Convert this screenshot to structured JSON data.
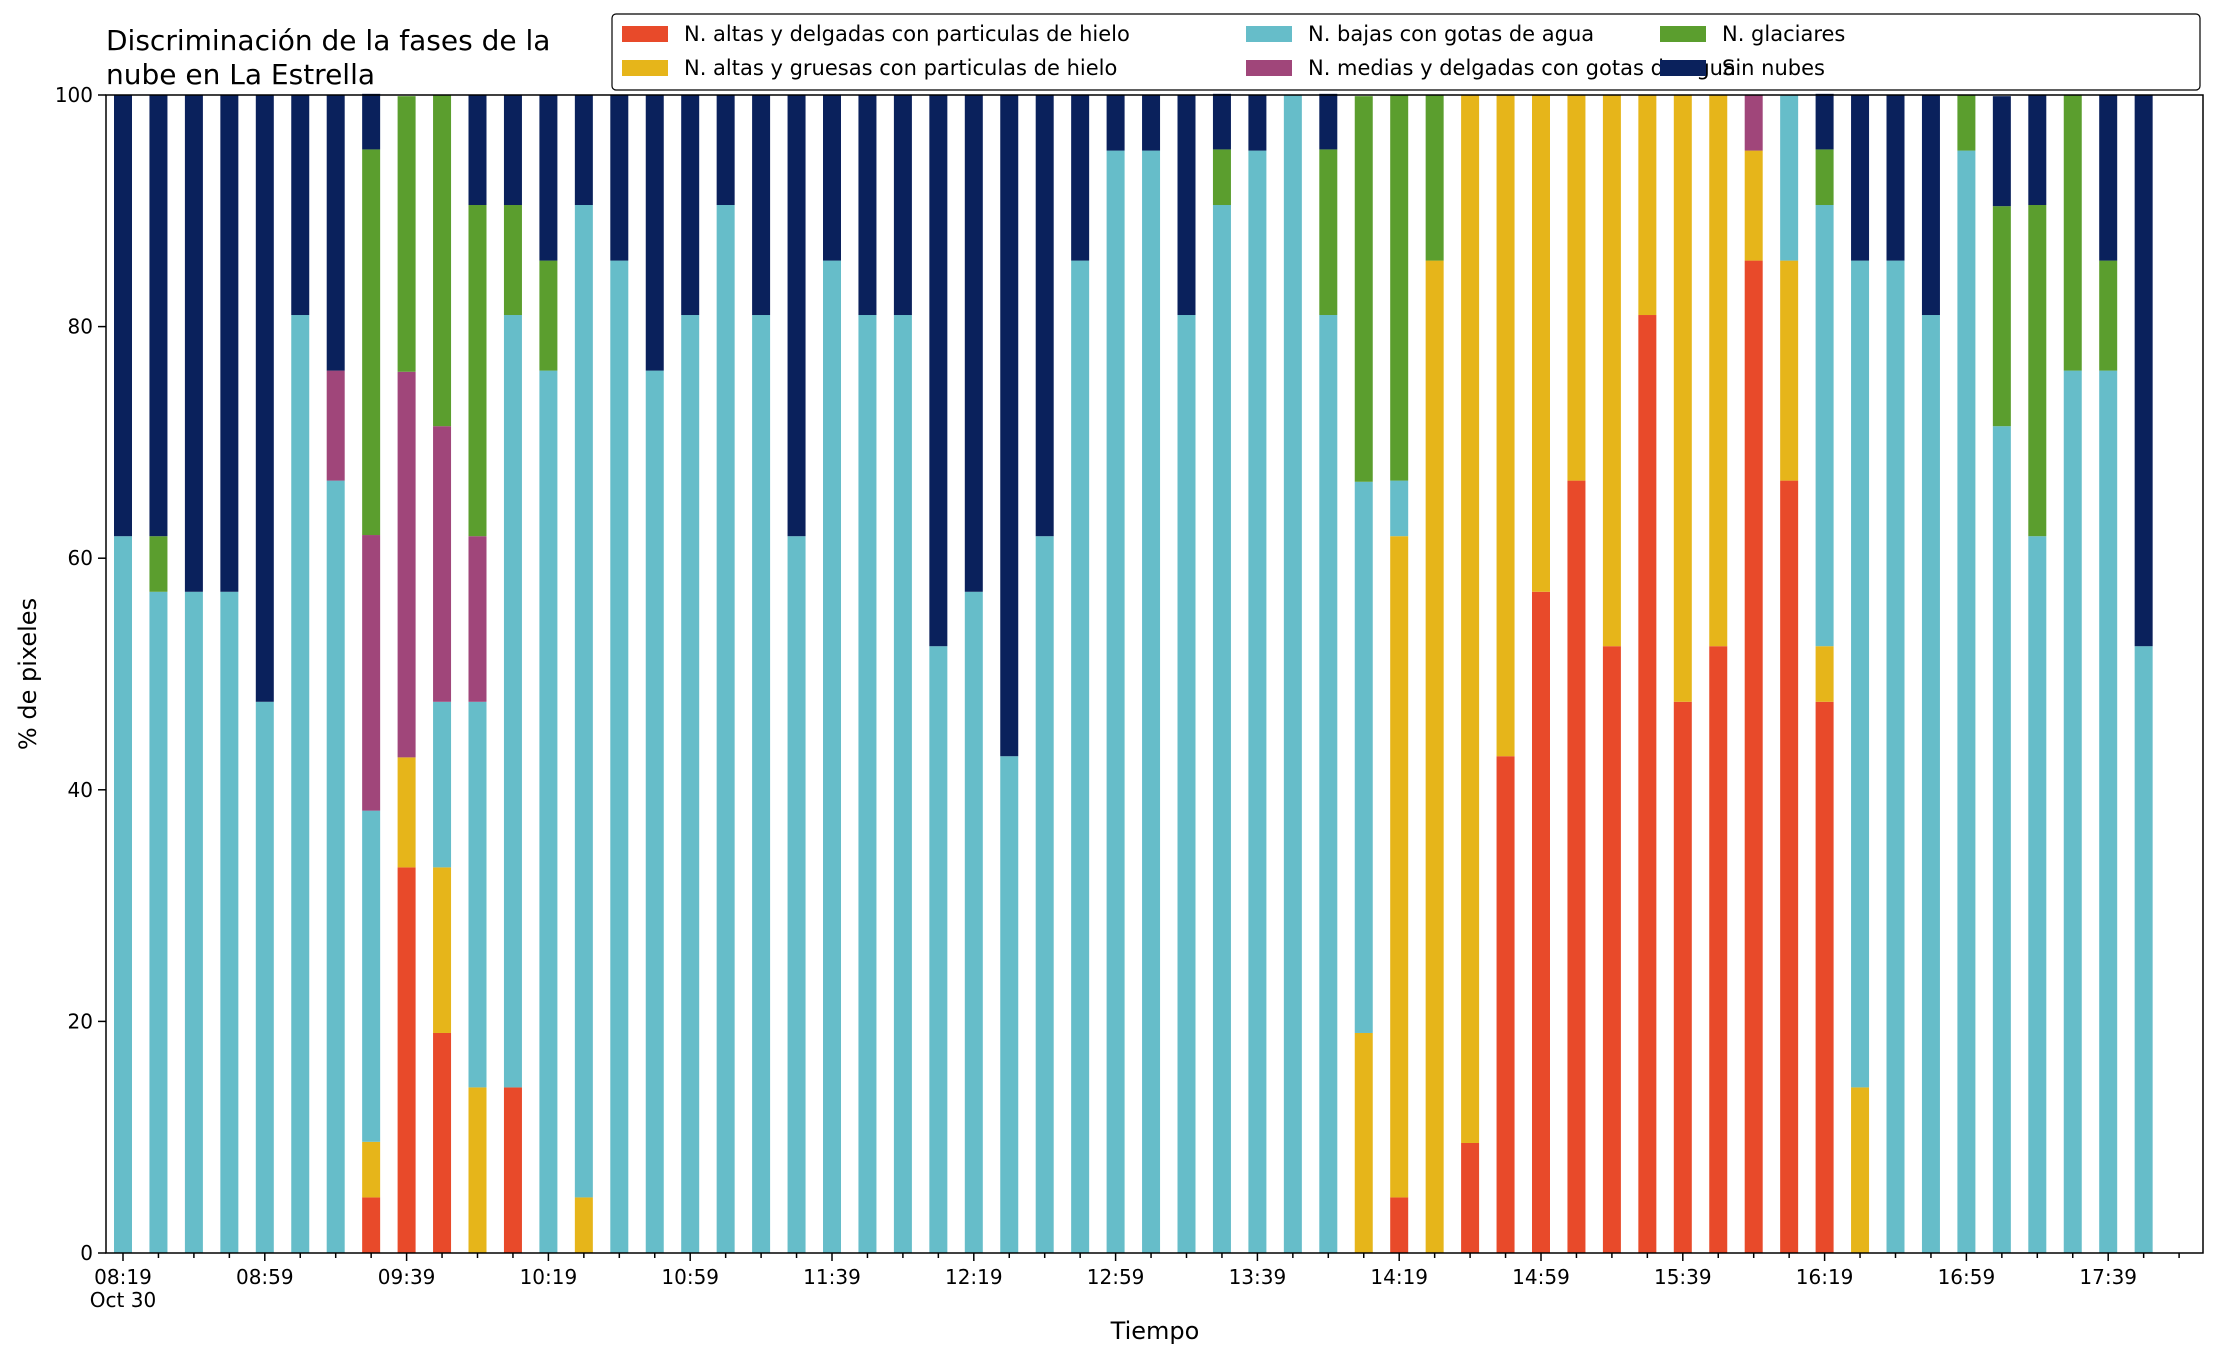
{
  "chart_data": {
    "type": "bar",
    "stacked": true,
    "title": "Discriminación de la fases de la nube en La Estrella",
    "title_lines": [
      "Discriminación de la fases de la",
      "nube en La Estrella"
    ],
    "xlabel": "Tiempo",
    "ylabel": "% de pixeles",
    "ylim": [
      0,
      100
    ],
    "yticks": [
      "0",
      "20",
      "40",
      "60",
      "80",
      "100"
    ],
    "xticks": [
      "08:19",
      "08:59",
      "09:39",
      "10:19",
      "10:59",
      "11:39",
      "12:19",
      "12:59",
      "13:39",
      "14:19",
      "14:59",
      "15:39",
      "16:19",
      "16:59",
      "17:39"
    ],
    "xtick_sub": "Oct 30",
    "grid": false,
    "legend_position": "top-right",
    "categories": [
      "08:19",
      "08:29",
      "08:39",
      "08:49",
      "08:59",
      "09:09",
      "09:19",
      "09:29",
      "09:39",
      "09:49",
      "09:59",
      "10:09",
      "10:19",
      "10:29",
      "10:39",
      "10:49",
      "10:59",
      "11:09",
      "11:19",
      "11:29",
      "11:39",
      "11:49",
      "11:59",
      "12:09",
      "12:19",
      "12:29",
      "12:39",
      "12:49",
      "12:59",
      "13:09",
      "13:19",
      "13:29",
      "13:39",
      "13:49",
      "13:59",
      "14:09",
      "14:19",
      "14:29",
      "14:39",
      "14:49",
      "14:59",
      "15:09",
      "15:19",
      "15:29",
      "15:39",
      "15:49",
      "15:59",
      "16:09",
      "16:19",
      "16:29",
      "16:39",
      "16:49",
      "16:59",
      "17:09",
      "17:19",
      "17:29",
      "17:39",
      "17:49"
    ],
    "series": [
      {
        "name": "N. altas y delgadas con particulas de hielo",
        "color": "#e84a2a",
        "values": [
          0,
          0,
          0,
          0,
          0,
          0,
          0,
          4.8,
          33.3,
          19,
          0,
          14.3,
          0,
          0,
          0,
          0,
          0,
          0,
          0,
          0,
          0,
          0,
          0,
          0,
          0,
          0,
          0,
          0,
          0,
          0,
          0,
          0,
          0,
          0,
          0,
          0,
          4.8,
          0,
          9.5,
          42.9,
          57.1,
          66.7,
          52.4,
          81,
          47.6,
          52.4,
          85.7,
          66.7,
          47.6,
          0,
          0,
          0,
          0,
          0,
          0,
          0,
          0,
          0
        ]
      },
      {
        "name": "N. altas y gruesas con particulas de hielo",
        "color": "#e6b51a",
        "values": [
          0,
          0,
          0,
          0,
          0,
          0,
          0,
          4.8,
          9.5,
          14.3,
          14.3,
          0,
          0,
          4.8,
          0,
          0,
          0,
          0,
          0,
          0,
          0,
          0,
          0,
          0,
          0,
          0,
          0,
          0,
          0,
          0,
          0,
          0,
          0,
          0,
          0,
          19,
          57.1,
          85.7,
          90.5,
          57.1,
          42.9,
          33.3,
          47.6,
          19,
          52.4,
          47.6,
          9.5,
          19,
          4.8,
          14.3,
          0,
          0,
          0,
          0,
          0,
          0,
          0,
          0
        ]
      },
      {
        "name": "N. bajas con gotas de agua",
        "color": "#66bdc9",
        "values": [
          61.9,
          57.1,
          57.1,
          57.1,
          47.6,
          81,
          66.7,
          28.6,
          0,
          14.3,
          33.3,
          66.7,
          76.2,
          85.7,
          85.7,
          76.2,
          81,
          90.5,
          81,
          61.9,
          85.7,
          81,
          81,
          52.4,
          57.1,
          42.9,
          61.9,
          85.7,
          95.2,
          95.2,
          81,
          90.5,
          95.2,
          100,
          81,
          47.6,
          4.8,
          0,
          0,
          0,
          0,
          0,
          0,
          0,
          0,
          0,
          0,
          14.3,
          38.1,
          71.4,
          85.7,
          81,
          95.2,
          71.4,
          61.9,
          76.2,
          76.2,
          52.4
        ]
      },
      {
        "name": "N. medias y delgadas con gotas de agua",
        "color": "#a0467a",
        "values": [
          0,
          0,
          0,
          0,
          0,
          0,
          9.5,
          23.8,
          33.3,
          23.8,
          14.3,
          0,
          0,
          0,
          0,
          0,
          0,
          0,
          0,
          0,
          0,
          0,
          0,
          0,
          0,
          0,
          0,
          0,
          0,
          0,
          0,
          0,
          0,
          0,
          0,
          0,
          0,
          0,
          0,
          0,
          0,
          0,
          0,
          0,
          0,
          0,
          4.8,
          0,
          0,
          0,
          0,
          0,
          0,
          0,
          0,
          0,
          0,
          0
        ]
      },
      {
        "name": "N. glaciares",
        "color": "#5b9e2e",
        "values": [
          0,
          4.8,
          0,
          0,
          0,
          0,
          0,
          33.3,
          23.8,
          28.6,
          28.6,
          9.5,
          9.5,
          0,
          0,
          0,
          0,
          0,
          0,
          0,
          0,
          0,
          0,
          0,
          0,
          0,
          0,
          0,
          0,
          0,
          0,
          4.8,
          0,
          0,
          14.3,
          33.3,
          33.3,
          14.3,
          0,
          0,
          0,
          0,
          0,
          0,
          0,
          0,
          0,
          0,
          4.8,
          0,
          0,
          0,
          4.8,
          19,
          28.6,
          23.8,
          9.5,
          0
        ]
      },
      {
        "name": "Sin nubes",
        "color": "#0a215c",
        "values": [
          38.1,
          38.1,
          42.9,
          42.9,
          52.4,
          19,
          23.8,
          4.8,
          0,
          0,
          9.5,
          9.5,
          14.3,
          9.5,
          14.3,
          23.8,
          19,
          9.5,
          19,
          38.1,
          14.3,
          19,
          19,
          47.6,
          42.9,
          57.1,
          38.1,
          14.3,
          4.8,
          4.8,
          19,
          4.8,
          4.8,
          0,
          4.8,
          0,
          0,
          0,
          0,
          0,
          0,
          0,
          0,
          0,
          0,
          0,
          0,
          0,
          4.8,
          14.3,
          14.3,
          19,
          0,
          9.5,
          9.5,
          0,
          14.3,
          47.6
        ]
      }
    ]
  }
}
